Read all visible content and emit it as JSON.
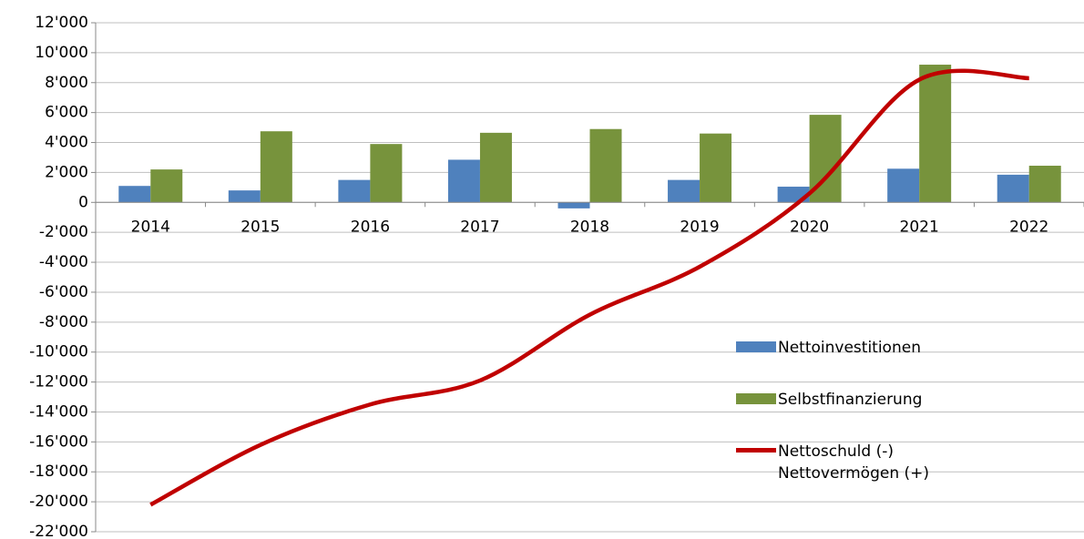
{
  "chart_data": {
    "type": "bar-line",
    "categories": [
      "2014",
      "2015",
      "2016",
      "2017",
      "2018",
      "2019",
      "2020",
      "2021",
      "2022"
    ],
    "series": [
      {
        "name": "Nettoinvestitionen",
        "type": "bar",
        "color": "#4f81bd",
        "values": [
          1100,
          800,
          1500,
          2850,
          -400,
          1500,
          1050,
          2250,
          1850
        ]
      },
      {
        "name": "Selbstfinanzierung",
        "type": "bar",
        "color": "#77933c",
        "values": [
          2200,
          4750,
          3900,
          4650,
          4900,
          4600,
          5850,
          9200,
          2450
        ]
      },
      {
        "name": "Nettoschuld (-)\nNettovermögen (+)",
        "type": "line",
        "color": "#c00000",
        "values": [
          -20200,
          -16200,
          -13500,
          -11900,
          -7500,
          -4300,
          600,
          8200,
          8300
        ]
      }
    ],
    "ylim": [
      -22000,
      12000
    ],
    "yticks": [
      {
        "value": -22000,
        "label": "-22'000"
      },
      {
        "value": -20000,
        "label": "-20'000"
      },
      {
        "value": -18000,
        "label": "-18'000"
      },
      {
        "value": -16000,
        "label": "-16'000"
      },
      {
        "value": -14000,
        "label": "-14'000"
      },
      {
        "value": -12000,
        "label": "-12'000"
      },
      {
        "value": -10000,
        "label": "-10'000"
      },
      {
        "value": -8000,
        "label": "-8'000"
      },
      {
        "value": -6000,
        "label": "-6'000"
      },
      {
        "value": -4000,
        "label": "-4'000"
      },
      {
        "value": -2000,
        "label": "-2'000"
      },
      0,
      {
        "value": 2000,
        "label": "2'000"
      },
      {
        "value": 4000,
        "label": "4'000"
      },
      {
        "value": 6000,
        "label": "6'000"
      },
      {
        "value": 8000,
        "label": "8'000"
      },
      {
        "value": 10000,
        "label": "10'000"
      },
      {
        "value": 12000,
        "label": "12'000"
      }
    ],
    "grid": true
  }
}
